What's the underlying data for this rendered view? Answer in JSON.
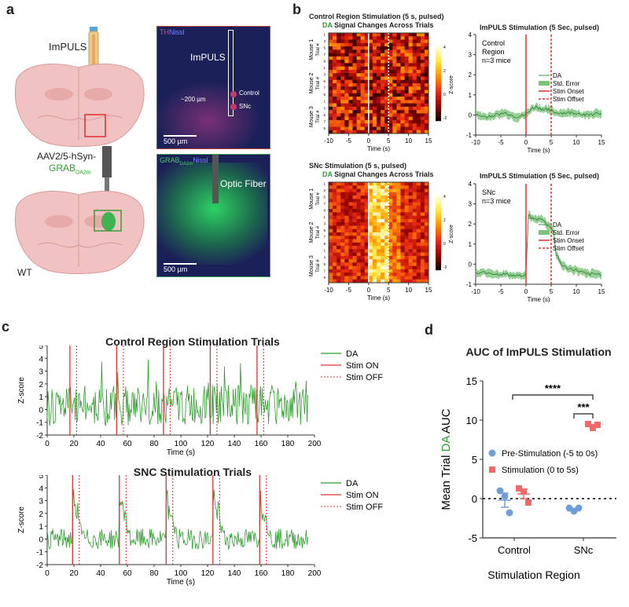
{
  "panels": {
    "a": {
      "letter": "a",
      "implant_label": "ImPULS",
      "virus_line1": "AAV2/5-hSyn-",
      "virus_line2_main": "GRAB",
      "virus_line2_sub": "DA2m",
      "wt_label": "WT",
      "micro1": {
        "stain_a": "TH",
        "stain_b": "Nissl",
        "implant": "ImPULS",
        "distance": "~200 µm",
        "control": "Control",
        "snc": "SNc",
        "scalebar": "500 µm"
      },
      "micro2": {
        "stain_a_main": "GRAB",
        "stain_a_sub": "DA2m",
        "stain_b": "Nissl",
        "fiber": "Optic Fiber",
        "scalebar": "500 µm"
      }
    },
    "b": {
      "letter": "b",
      "heat_top_title": "Control Region Stimulation (5 s, pulsed)",
      "heat_top_sub_da": "DA",
      "heat_top_sub_rest": " Signal Changes Across Trials",
      "heat_bot_title": "SNc Stimulation (5 s, pulsed)",
      "heat_bot_sub_da": "DA",
      "heat_bot_sub_rest": " Signal Changes Across Trials",
      "mouse_labels": [
        "Mouse 1",
        "Mouse 2",
        "Mouse 3"
      ],
      "trial_label": "Trial #",
      "x_ticks": [
        "-10",
        "-5",
        "0",
        "5",
        "10",
        "15"
      ],
      "xlabel": "Time (s)",
      "cbar_label": "Z-score",
      "cbar_top_ticks": [
        "4",
        "2",
        "0",
        "-2"
      ],
      "cbar_bot_ticks": [
        "4",
        "2",
        "0",
        "-2"
      ],
      "line_top_title": "ImPULS Stimulation (5 Sec, pulsed)",
      "line_bot_title": "ImPULS Stimulation (5 Sec, pulsed)",
      "line_top_region": [
        "Control",
        "Region",
        "n=3 mice"
      ],
      "line_bot_region": [
        "SNc",
        "n=3 mice"
      ],
      "legend": [
        "DA",
        "Std. Error",
        "Stim Onset",
        "Stim Offset"
      ],
      "line_top_yticks": [
        "4",
        "3",
        "2",
        "1",
        "0",
        "-1"
      ],
      "line_bot_yticks": [
        "4",
        "3",
        "2",
        "1",
        "0",
        "-1"
      ]
    },
    "c": {
      "letter": "c",
      "top_title": "Control Region Stimulation Trials",
      "bot_title": "SNC Stimulation Trials",
      "ylabel": "Z-score",
      "xlabel": "Time (s)",
      "yticks": [
        "5",
        "4",
        "3",
        "2",
        "1",
        "0",
        "-1",
        "-2"
      ],
      "xticks": [
        "0",
        "20",
        "40",
        "60",
        "80",
        "100",
        "120",
        "140",
        "160",
        "180",
        "200"
      ],
      "legend": [
        "DA",
        "Stim ON",
        "Stim OFF"
      ]
    },
    "d": {
      "letter": "d",
      "title": "AUC of ImPULS Stimulation",
      "ylabel_pre": "Mean Trial ",
      "ylabel_da": "DA",
      "ylabel_post": " AUC",
      "xlabel": "Stimulation Region",
      "yticks": [
        "15",
        "10",
        "5",
        "0",
        "-5"
      ],
      "categories": [
        "Control",
        "SNc"
      ],
      "legend": [
        "Pre-Stimulation (-5 to 0s)",
        "Stimulation (0 to 5s)"
      ],
      "sig_top": "****",
      "sig_inner": "***"
    }
  },
  "colors": {
    "da_green": "#2f9e2f",
    "stim_red": "#e03030",
    "pre_blue": "#6f9fd8",
    "stim_pink": "#f06a6a",
    "micro_blue": "#1a2060",
    "micro_green": "#2fd35a"
  },
  "chart_data": [
    {
      "type": "line",
      "panel": "b-top-right",
      "title": "ImPULS Stimulation (5 Sec, pulsed)",
      "xlabel": "Time (s)",
      "xlim": [
        -10,
        15
      ],
      "ylim": [
        -1,
        4
      ],
      "series": [
        {
          "name": "DA",
          "x": [
            -10,
            -8,
            -6,
            -4,
            -2,
            0,
            1,
            2,
            3,
            4,
            5,
            6,
            8,
            10,
            12,
            15
          ],
          "values": [
            0.0,
            -0.1,
            0.0,
            0.1,
            -0.1,
            0.0,
            0.3,
            0.4,
            0.3,
            0.3,
            0.2,
            0.1,
            0.1,
            0.1,
            0.0,
            0.1
          ]
        }
      ],
      "stim_onset": 0,
      "stim_offset": 5
    },
    {
      "type": "line",
      "panel": "b-bottom-right",
      "title": "ImPULS Stimulation (5 Sec, pulsed)",
      "xlabel": "Time (s)",
      "xlim": [
        -10,
        15
      ],
      "ylim": [
        -1,
        4
      ],
      "series": [
        {
          "name": "DA",
          "x": [
            -10,
            -8,
            -6,
            -4,
            -2,
            0,
            0.5,
            1,
            2,
            3,
            4,
            5,
            5.5,
            6,
            7,
            8,
            10,
            12,
            15
          ],
          "values": [
            -0.5,
            -0.4,
            -0.5,
            -0.5,
            -0.6,
            -0.5,
            2.5,
            2.3,
            2.2,
            2.3,
            2.0,
            1.8,
            1.6,
            0.5,
            0.0,
            -0.2,
            -0.3,
            -0.5,
            -0.5
          ]
        }
      ],
      "stim_onset": 0,
      "stim_offset": 5
    },
    {
      "type": "line",
      "panel": "c-top",
      "title": "Control Region Stimulation Trials",
      "xlabel": "Time (s)",
      "ylabel": "Z-score",
      "xlim": [
        0,
        200
      ],
      "ylim": [
        -2,
        5
      ],
      "stim_on": [
        17,
        52,
        87,
        122,
        157
      ],
      "stim_off": [
        22,
        57,
        92,
        127,
        162
      ]
    },
    {
      "type": "line",
      "panel": "c-bottom",
      "title": "SNC Stimulation Trials",
      "xlabel": "Time (s)",
      "ylabel": "Z-score",
      "xlim": [
        0,
        200
      ],
      "ylim": [
        -2,
        5
      ],
      "stim_on": [
        19,
        54,
        89,
        124,
        159
      ],
      "stim_off": [
        24,
        59,
        94,
        129,
        164
      ]
    },
    {
      "type": "scatter",
      "panel": "d",
      "title": "AUC of ImPULS Stimulation",
      "xlabel": "Stimulation Region",
      "ylabel": "Mean Trial DA AUC",
      "ylim": [
        -5,
        15
      ],
      "categories": [
        "Control",
        "SNc"
      ],
      "series": [
        {
          "name": "Pre-Stimulation (-5 to 0s)",
          "points": [
            [
              1.0,
              0.3,
              -1.8
            ],
            [
              -1.2,
              -1.6,
              -1.2
            ]
          ],
          "mean": [
            -0.2,
            -1.4
          ],
          "sem": [
            0.9,
            0.15
          ]
        },
        {
          "name": "Stimulation (0 to 5s)",
          "points": [
            [
              1.3,
              0.9,
              -0.5
            ],
            [
              9.5,
              9.0,
              9.4
            ]
          ],
          "mean": [
            0.6,
            9.3
          ],
          "sem": [
            0.6,
            0.15
          ]
        }
      ]
    }
  ]
}
